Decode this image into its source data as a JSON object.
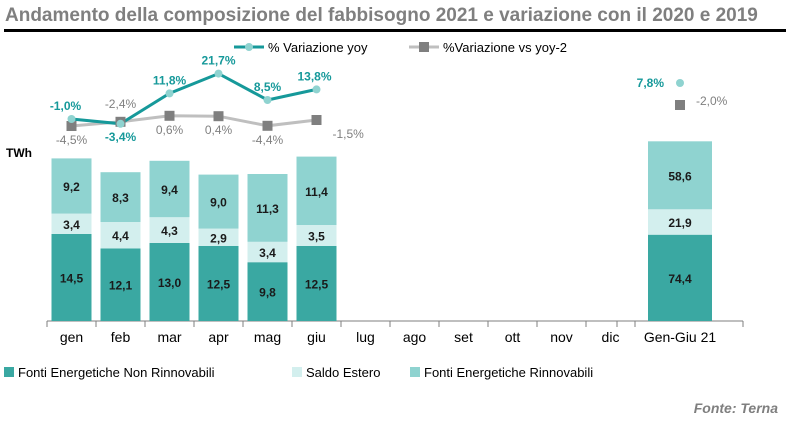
{
  "chart_data": {
    "type": "bar",
    "title": "Andamento della composizione del fabbisogno 2021 e variazione con il 2020 e 2019",
    "ylabel": "TWh",
    "source": "Fonte: Terna",
    "categories": [
      "gen",
      "feb",
      "mar",
      "apr",
      "mag",
      "giu",
      "lug",
      "ago",
      "set",
      "ott",
      "nov",
      "dic"
    ],
    "series": [
      {
        "name": "Fonti Energetiche Non Rinnovabili",
        "color": "#3aa8a2",
        "values": [
          14.5,
          12.1,
          13.0,
          12.5,
          9.8,
          12.5,
          null,
          null,
          null,
          null,
          null,
          null
        ],
        "labels": [
          "14,5",
          "12,1",
          "13,0",
          "12,5",
          "9,8",
          "12,5",
          "",
          "",
          "",
          "",
          "",
          ""
        ]
      },
      {
        "name": "Saldo Estero",
        "color": "#d3efee",
        "values": [
          3.4,
          4.4,
          4.3,
          2.9,
          3.4,
          3.5,
          null,
          null,
          null,
          null,
          null,
          null
        ],
        "labels": [
          "3,4",
          "4,4",
          "4,3",
          "2,9",
          "3,4",
          "3,5",
          "",
          "",
          "",
          "",
          "",
          ""
        ]
      },
      {
        "name": "Fonti Energetiche Rinnovabili",
        "color": "#8fd3d0",
        "values": [
          9.2,
          8.3,
          9.4,
          9.0,
          11.3,
          11.4,
          null,
          null,
          null,
          null,
          null,
          null
        ],
        "labels": [
          "9,2",
          "8,3",
          "9,4",
          "9,0",
          "11,3",
          "11,4",
          "",
          "",
          "",
          "",
          "",
          ""
        ]
      }
    ],
    "lines": [
      {
        "name": "% Variazione yoy",
        "color": "#16999a",
        "values": [
          -1.0,
          -3.4,
          11.8,
          21.7,
          8.5,
          13.8
        ],
        "labels": [
          "-1,0%",
          "-3,4%",
          "11,8%",
          "21,7%",
          "8,5%",
          "13,8%"
        ]
      },
      {
        "name": "%Variazione vs yoy-2",
        "color": "#7f7f7f",
        "values": [
          -4.5,
          -2.4,
          0.6,
          0.4,
          -4.4,
          -1.5
        ],
        "labels": [
          "-4,5%",
          "-2,4%",
          "0,6%",
          "0,4%",
          "-4,4%",
          "-1,5%"
        ]
      }
    ],
    "total": {
      "category": "Gen-Giu 21",
      "values": [
        74.4,
        21.9,
        58.6
      ],
      "labels": [
        "74,4",
        "21,9",
        "58,6"
      ],
      "yoy": 7.8,
      "yoy_label": "7,8%",
      "yoy2": -2.0,
      "yoy2_label": "-2,0%"
    }
  }
}
